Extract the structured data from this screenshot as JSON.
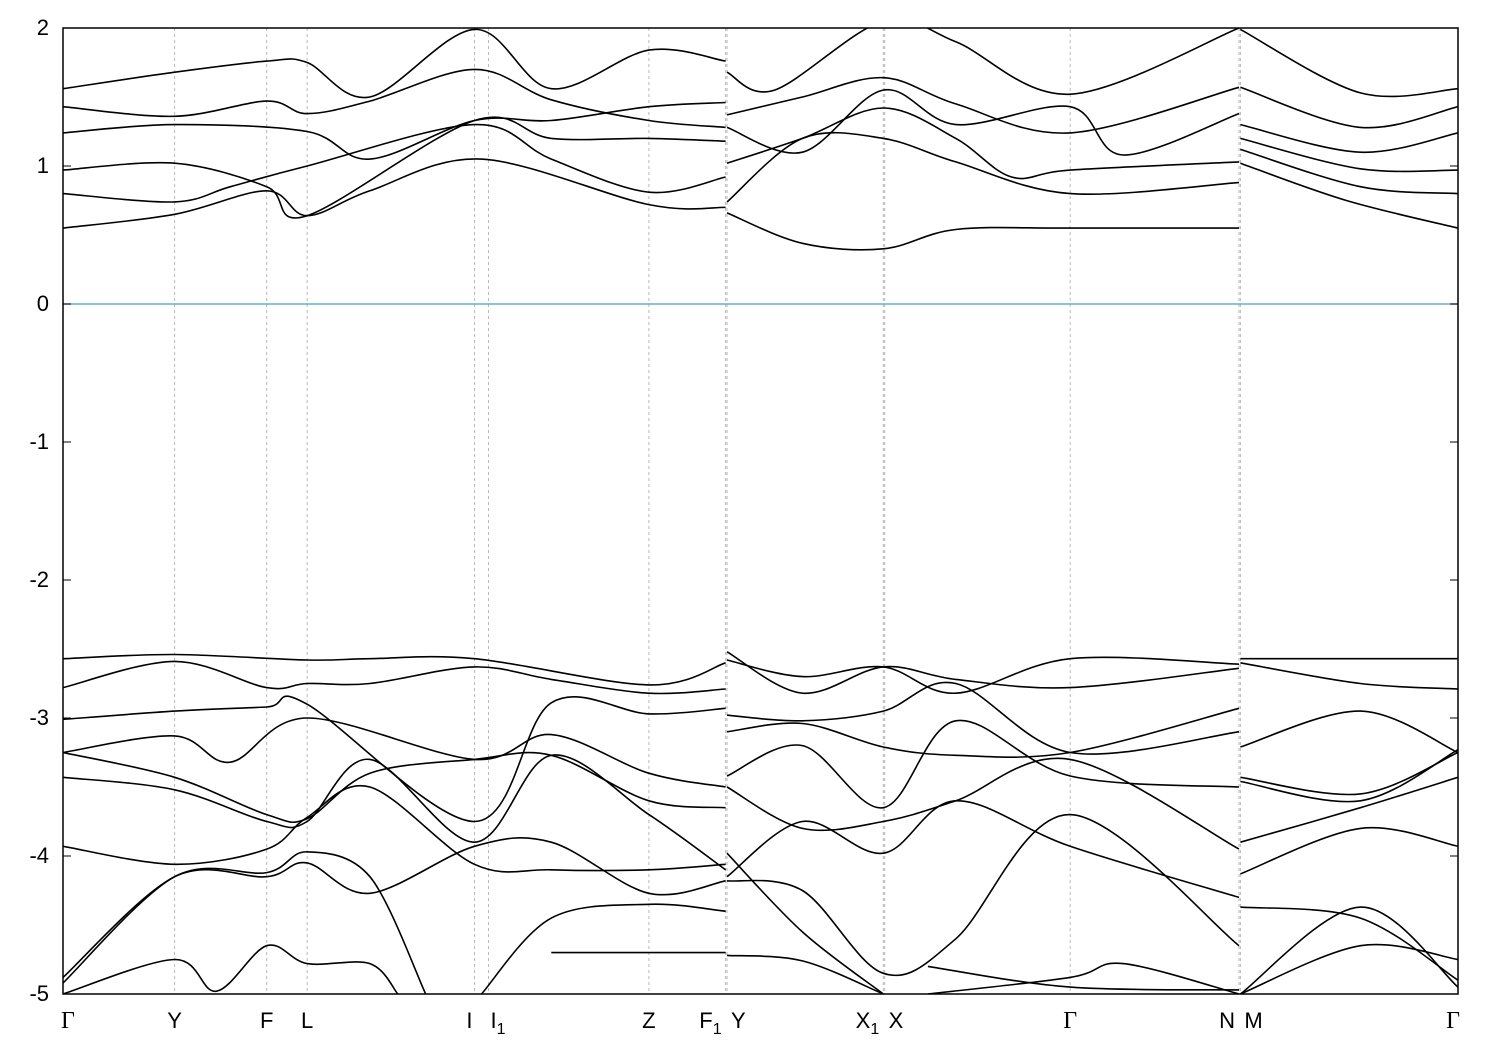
{
  "chart_data": {
    "type": "line",
    "title": "",
    "xlabel": "",
    "ylabel": "",
    "ylim": [
      -5,
      2
    ],
    "yticks": [
      "2",
      "1",
      "0",
      "-1",
      "-2",
      "-3",
      "-4",
      "-5"
    ],
    "grid": "vertical dashed at high-symmetry points",
    "fermi_level": {
      "value": 0,
      "color": "#5fb4c8"
    },
    "kpoints": [
      {
        "label": "Γ",
        "x": 0.0
      },
      {
        "label": "Y",
        "x": 0.8
      },
      {
        "label": "F",
        "x": 1.46
      },
      {
        "label": "L",
        "x": 1.75
      },
      {
        "label": "I",
        "x": 2.95
      },
      {
        "label": "I",
        "sub": "1",
        "x": 3.05
      },
      {
        "label": "Z",
        "x": 4.2
      },
      {
        "label": "F",
        "sub": "1",
        "x": 4.75
      },
      {
        "label": "Y",
        "x": 4.76
      },
      {
        "label": "X",
        "sub": "1",
        "x": 5.88
      },
      {
        "label": "X",
        "x": 5.89
      },
      {
        "label": "Γ",
        "x": 7.22
      },
      {
        "label": "N",
        "x": 8.43
      },
      {
        "label": "M",
        "x": 8.44
      },
      {
        "label": "Γ",
        "x": 10.0
      }
    ],
    "series": [
      {
        "segments": [
          {
            "x": [
              0,
              0.8,
              1.46,
              1.75,
              2.2,
              3.0,
              4.2,
              4.75
            ],
            "y": [
              0.55,
              0.65,
              0.82,
              0.64,
              0.82,
              1.05,
              0.72,
              0.7
            ]
          },
          {
            "x": [
              4.76,
              5.3,
              5.88,
              6.4,
              7.22,
              8.43
            ],
            "y": [
              0.66,
              0.44,
              0.4,
              0.54,
              0.55,
              0.55
            ]
          },
          {
            "x": [
              8.44,
              9.2,
              10.0
            ],
            "y": [
              1.02,
              0.75,
              0.55
            ]
          }
        ]
      },
      {
        "segments": [
          {
            "x": [
              0,
              0.8,
              1.2,
              1.75,
              2.95,
              3.5,
              4.2,
              4.75
            ],
            "y": [
              0.8,
              0.74,
              0.85,
              1.0,
              1.3,
              1.05,
              0.81,
              0.92
            ]
          },
          {
            "x": [
              4.76,
              5.3,
              5.88,
              6.4,
              7.22,
              8.43
            ],
            "y": [
              0.74,
              1.2,
              1.2,
              1.03,
              0.8,
              0.88
            ]
          },
          {
            "x": [
              8.44,
              9.3,
              10.0
            ],
            "y": [
              1.12,
              0.85,
              0.8
            ]
          }
        ]
      },
      {
        "segments": [
          {
            "x": [
              0,
              0.8,
              1.46,
              1.75,
              2.95,
              3.5,
              4.2,
              4.75
            ],
            "y": [
              0.97,
              1.02,
              0.85,
              0.64,
              1.33,
              1.2,
              1.2,
              1.18
            ]
          },
          {
            "x": [
              4.76,
              5.3,
              5.88,
              6.4,
              6.8,
              7.22,
              8.43
            ],
            "y": [
              1.02,
              1.2,
              1.42,
              1.2,
              0.92,
              0.97,
              1.03
            ]
          },
          {
            "x": [
              8.44,
              9.3,
              10.0
            ],
            "y": [
              1.2,
              0.98,
              0.97
            ]
          }
        ]
      },
      {
        "segments": [
          {
            "x": [
              0,
              0.8,
              1.75,
              2.2,
              2.95,
              3.5,
              4.2,
              4.75
            ],
            "y": [
              1.24,
              1.3,
              1.25,
              1.05,
              1.33,
              1.33,
              1.43,
              1.46
            ]
          },
          {
            "x": [
              4.76,
              5.3,
              5.88,
              6.4,
              7.22,
              7.6,
              8.43
            ],
            "y": [
              1.28,
              1.1,
              1.55,
              1.3,
              1.43,
              1.08,
              1.38
            ]
          },
          {
            "x": [
              8.44,
              9.3,
              10.0
            ],
            "y": [
              1.3,
              1.1,
              1.24
            ]
          }
        ]
      },
      {
        "segments": [
          {
            "x": [
              0,
              0.8,
              1.46,
              1.75,
              2.2,
              2.95,
              3.5,
              4.2,
              4.75
            ],
            "y": [
              1.43,
              1.36,
              1.47,
              1.38,
              1.47,
              1.7,
              1.48,
              1.33,
              1.28
            ]
          },
          {
            "x": [
              4.76,
              5.3,
              5.88,
              6.4,
              7.22,
              8.43
            ],
            "y": [
              1.37,
              1.5,
              1.64,
              1.45,
              1.24,
              1.57
            ]
          },
          {
            "x": [
              8.44,
              9.3,
              10.0
            ],
            "y": [
              1.57,
              1.28,
              1.43
            ]
          }
        ]
      },
      {
        "segments": [
          {
            "x": [
              0,
              0.8,
              1.46,
              1.75,
              2.2,
              2.95,
              3.5,
              4.2,
              4.75
            ],
            "y": [
              1.56,
              1.68,
              1.76,
              1.75,
              1.5,
              1.99,
              1.56,
              1.84,
              1.76
            ]
          },
          {
            "x": [
              4.76,
              5.1,
              5.88,
              6.4,
              7.22,
              8.43
            ],
            "y": [
              1.68,
              1.55,
              2.05,
              1.9,
              1.52,
              2.0
            ]
          },
          {
            "x": [
              8.44,
              9.3,
              10.0
            ],
            "y": [
              1.99,
              1.53,
              1.56
            ]
          }
        ]
      },
      {
        "segments": [
          {
            "x": [
              0,
              0.8,
              1.75,
              2.2,
              2.95,
              4.2,
              4.75
            ],
            "y": [
              -2.57,
              -2.54,
              -2.58,
              -2.57,
              -2.57,
              -2.76,
              -2.6
            ]
          },
          {
            "x": [
              4.76,
              5.3,
              5.88,
              6.4,
              7.22,
              8.43
            ],
            "y": [
              -2.52,
              -2.82,
              -2.63,
              -2.72,
              -2.78,
              -2.64
            ]
          },
          {
            "x": [
              8.44,
              10.0
            ],
            "y": [
              -2.57,
              -2.57
            ]
          }
        ]
      },
      {
        "segments": [
          {
            "x": [
              0,
              0.8,
              1.46,
              1.75,
              2.2,
              2.95,
              3.5,
              4.2,
              4.75
            ],
            "y": [
              -2.78,
              -2.59,
              -2.78,
              -2.75,
              -2.75,
              -2.63,
              -2.72,
              -2.82,
              -2.79
            ]
          },
          {
            "x": [
              4.76,
              5.3,
              5.88,
              6.4,
              7.22,
              8.43
            ],
            "y": [
              -2.58,
              -2.7,
              -2.63,
              -2.82,
              -2.57,
              -2.61
            ]
          },
          {
            "x": [
              8.44,
              9.3,
              10.0
            ],
            "y": [
              -2.6,
              -2.75,
              -2.79
            ]
          }
        ]
      },
      {
        "segments": [
          {
            "x": [
              0,
              0.8,
              1.46,
              1.75,
              2.95,
              3.5,
              4.2,
              4.75
            ],
            "y": [
              -3.01,
              -2.95,
              -2.92,
              -2.9,
              -3.75,
              -2.89,
              -2.97,
              -2.93
            ]
          },
          {
            "x": [
              4.76,
              5.3,
              5.88,
              6.4,
              7.22,
              8.43
            ],
            "y": [
              -2.98,
              -3.02,
              -2.95,
              -2.75,
              -3.25,
              -3.1
            ]
          },
          {
            "x": [
              8.44,
              9.3,
              10.0
            ],
            "y": [
              -3.21,
              -2.95,
              -3.25
            ]
          }
        ]
      },
      {
        "segments": [
          {
            "x": [
              0,
              0.8,
              1.2,
              1.75,
              2.95,
              3.5,
              4.2,
              4.75
            ],
            "y": [
              -3.25,
              -3.13,
              -3.32,
              -3.0,
              -3.3,
              -3.12,
              -3.4,
              -3.5
            ]
          },
          {
            "x": [
              4.76,
              5.3,
              5.88,
              6.4,
              7.22,
              8.43
            ],
            "y": [
              -3.1,
              -3.04,
              -3.21,
              -3.27,
              -3.25,
              -2.93
            ]
          },
          {
            "x": [
              8.44,
              9.3,
              10.0
            ],
            "y": [
              -3.43,
              -3.55,
              -3.25
            ]
          }
        ]
      },
      {
        "segments": [
          {
            "x": [
              0,
              0.8,
              1.46,
              1.75,
              2.2,
              2.95,
              3.5,
              4.2,
              4.75
            ],
            "y": [
              -3.25,
              -3.43,
              -3.7,
              -3.73,
              -3.4,
              -3.3,
              -3.27,
              -3.6,
              -3.65
            ]
          },
          {
            "x": [
              4.76,
              5.3,
              5.88,
              6.4,
              7.22,
              8.43
            ],
            "y": [
              -3.42,
              -3.2,
              -3.65,
              -3.02,
              -3.42,
              -3.5
            ]
          },
          {
            "x": [
              8.44,
              9.3,
              10.0
            ],
            "y": [
              -3.46,
              -3.6,
              -3.23
            ]
          }
        ]
      },
      {
        "segments": [
          {
            "x": [
              0,
              0.8,
              1.46,
              1.75,
              2.2,
              2.95,
              3.5,
              4.2,
              4.75
            ],
            "y": [
              -3.43,
              -3.52,
              -3.75,
              -3.75,
              -3.3,
              -3.9,
              -3.27,
              -3.7,
              -4.1
            ]
          },
          {
            "x": [
              4.76,
              5.3,
              5.88,
              6.4,
              7.22,
              8.43
            ],
            "y": [
              -3.5,
              -3.8,
              -3.75,
              -3.6,
              -3.3,
              -3.95
            ]
          },
          {
            "x": [
              8.44,
              9.3,
              10.0
            ],
            "y": [
              -3.9,
              -3.65,
              -3.43
            ]
          }
        ]
      },
      {
        "segments": [
          {
            "x": [
              0,
              0.8,
              1.46,
              1.75,
              2.2,
              2.95,
              3.5,
              4.2,
              4.75
            ],
            "y": [
              -3.93,
              -4.06,
              -3.95,
              -3.72,
              -3.5,
              -4.06,
              -4.1,
              -4.1,
              -4.06
            ]
          },
          {
            "x": [
              4.76,
              5.3,
              5.88,
              6.4,
              7.22,
              8.43
            ],
            "y": [
              -4.15,
              -3.75,
              -3.98,
              -3.6,
              -3.93,
              -4.3
            ]
          },
          {
            "x": [
              8.44,
              9.3,
              10.0
            ],
            "y": [
              -4.13,
              -3.8,
              -3.93
            ]
          }
        ]
      },
      {
        "segments": [
          {
            "x": [
              0,
              0.8,
              1.46,
              1.75,
              2.2,
              2.95,
              3.5,
              4.2,
              4.75
            ],
            "y": [
              -4.88,
              -4.15,
              -4.15,
              -4.05,
              -4.27,
              -3.93,
              -3.9,
              -4.27,
              -4.18
            ]
          },
          {
            "x": [
              4.76,
              5.3,
              5.88,
              6.4,
              7.22,
              8.43
            ],
            "y": [
              -4.18,
              -4.25,
              -4.85,
              -4.6,
              -3.7,
              -4.65
            ]
          },
          {
            "x": [
              8.44,
              9.3,
              10.0
            ],
            "y": [
              -4.37,
              -4.45,
              -4.9
            ]
          }
        ]
      },
      {
        "segments": [
          {
            "x": [
              0,
              0.8,
              1.46,
              1.75,
              2.2,
              2.6
            ],
            "y": [
              -4.92,
              -4.15,
              -4.12,
              -3.97,
              -4.15,
              -5.0
            ]
          },
          {
            "x": [
              3.0,
              3.5,
              4.2,
              4.75
            ],
            "y": [
              -5.0,
              -4.45,
              -4.35,
              -4.4
            ]
          },
          {
            "x": [
              4.76,
              5.3,
              5.88
            ],
            "y": [
              -3.98,
              -4.55,
              -5.0
            ]
          },
          {
            "x": [
              6.2,
              7.22,
              8.43
            ],
            "y": [
              -4.8,
              -4.95,
              -4.97
            ]
          },
          {
            "x": [
              8.44,
              9.3,
              10.0
            ],
            "y": [
              -5.0,
              -4.37,
              -4.95
            ]
          }
        ]
      },
      {
        "segments": [
          {
            "x": [
              0,
              0.8,
              1.1,
              1.46,
              1.75,
              2.2,
              2.4
            ],
            "y": [
              -5.0,
              -4.75,
              -4.98,
              -4.65,
              -4.78,
              -4.78,
              -5.0
            ]
          },
          {
            "x": [
              3.5,
              4.2,
              4.75
            ],
            "y": [
              -4.7,
              -4.7,
              -4.7
            ]
          },
          {
            "x": [
              4.76,
              5.3,
              5.88
            ],
            "y": [
              -4.72,
              -4.76,
              -5.0
            ]
          },
          {
            "x": [
              6.2,
              7.22,
              7.6,
              8.43
            ],
            "y": [
              -5.0,
              -4.88,
              -4.78,
              -5.0
            ]
          },
          {
            "x": [
              8.44,
              9.3,
              10.0
            ],
            "y": [
              -5.0,
              -4.65,
              -4.75
            ]
          }
        ]
      }
    ]
  }
}
